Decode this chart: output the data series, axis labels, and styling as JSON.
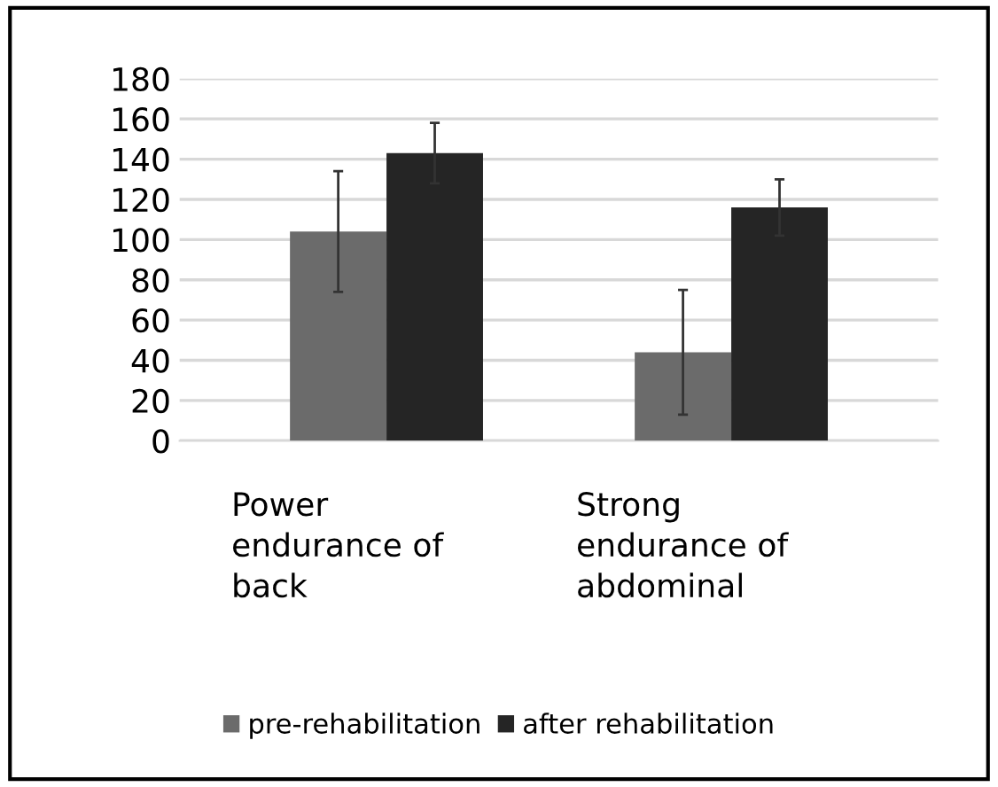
{
  "chart_data": {
    "type": "bar",
    "categories": [
      "Power\nendurance of\nback",
      "Strong\nendurance of\nabdominal"
    ],
    "series": [
      {
        "name": "pre-rehabilitation",
        "color": "#6b6b6b",
        "values": [
          104,
          44
        ],
        "errors": [
          30,
          31
        ]
      },
      {
        "name": "after rehabilitation",
        "color": "#252525",
        "values": [
          143,
          116
        ],
        "errors": [
          15,
          14
        ]
      }
    ],
    "ylim": [
      0,
      180
    ],
    "yticks": [
      0,
      20,
      40,
      60,
      80,
      100,
      120,
      140,
      160,
      180
    ],
    "grid": "y",
    "legend": "bottom"
  }
}
